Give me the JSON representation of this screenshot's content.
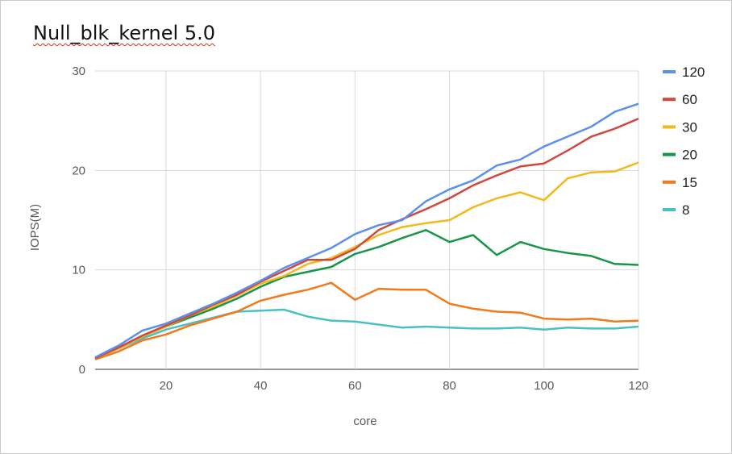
{
  "title": "Null_blk_kernel  5.0",
  "chart_data": {
    "type": "line",
    "title": "Null_blk_kernel  5.0",
    "xlabel": "core",
    "ylabel": "IOPS(M)",
    "xlim": [
      5,
      120
    ],
    "ylim": [
      0,
      30
    ],
    "x_ticks": [
      20,
      40,
      60,
      80,
      100,
      120
    ],
    "y_ticks": [
      0,
      10,
      20,
      30
    ],
    "grid": true,
    "legend_position": "right",
    "x": [
      5,
      10,
      15,
      20,
      25,
      30,
      35,
      40,
      45,
      50,
      55,
      60,
      65,
      70,
      75,
      80,
      85,
      90,
      95,
      100,
      105,
      110,
      115,
      120
    ],
    "series": [
      {
        "name": "120",
        "color": "#5b8ff0",
        "values": [
          1.2,
          2.4,
          3.9,
          4.6,
          5.6,
          6.6,
          7.7,
          8.9,
          10.2,
          11.2,
          12.2,
          13.6,
          14.5,
          15.0,
          16.9,
          18.1,
          19.0,
          20.5,
          21.1,
          22.4,
          23.4,
          24.4,
          25.9,
          26.7
        ]
      },
      {
        "name": "60",
        "color": "#d2473d",
        "values": [
          1.1,
          2.2,
          3.4,
          4.4,
          5.4,
          6.5,
          7.5,
          8.8,
          9.9,
          11.0,
          11.0,
          12.1,
          14.0,
          15.1,
          16.1,
          17.2,
          18.5,
          19.5,
          20.4,
          20.7,
          22.0,
          23.4,
          24.2,
          25.2
        ]
      },
      {
        "name": "30",
        "color": "#f2b91c",
        "values": [
          1.1,
          2.1,
          3.3,
          4.3,
          5.4,
          6.3,
          7.4,
          8.6,
          9.4,
          10.6,
          11.2,
          12.3,
          13.5,
          14.3,
          14.7,
          15.0,
          16.3,
          17.2,
          17.8,
          17.0,
          19.2,
          19.8,
          19.9,
          20.8
        ]
      },
      {
        "name": "20",
        "color": "#17964a",
        "values": [
          1.1,
          2.2,
          3.3,
          4.3,
          5.2,
          6.1,
          7.1,
          8.3,
          9.3,
          9.8,
          10.3,
          11.6,
          12.3,
          13.2,
          14.0,
          12.8,
          13.5,
          11.5,
          12.8,
          12.1,
          11.7,
          11.4,
          10.6,
          10.5
        ]
      },
      {
        "name": "15",
        "color": "#f27a1a",
        "values": [
          1.0,
          1.8,
          2.9,
          3.5,
          4.4,
          5.1,
          5.8,
          6.9,
          7.5,
          8.0,
          8.7,
          7.0,
          8.1,
          8.0,
          8.0,
          6.6,
          6.1,
          5.8,
          5.7,
          5.1,
          5.0,
          5.1,
          4.8,
          4.9
        ]
      },
      {
        "name": "8",
        "color": "#49c1c4",
        "values": [
          1.1,
          2.1,
          3.1,
          4.0,
          4.6,
          5.2,
          5.8,
          5.9,
          6.0,
          5.3,
          4.9,
          4.8,
          4.5,
          4.2,
          4.3,
          4.2,
          4.1,
          4.1,
          4.2,
          4.0,
          4.2,
          4.1,
          4.1,
          4.3
        ]
      }
    ]
  }
}
